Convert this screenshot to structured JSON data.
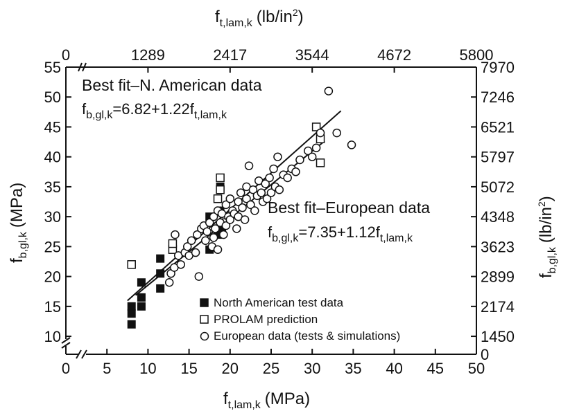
{
  "chart_data": {
    "type": "scatter",
    "bottom_axis": {
      "label": "f",
      "label_sub": "t,lam,k",
      "label_unit": "(MPa)",
      "range": [
        0,
        50
      ],
      "ticks": [
        "0",
        "5",
        "10",
        "15",
        "20",
        "25",
        "30",
        "35",
        "40",
        "45",
        "50"
      ]
    },
    "top_axis": {
      "label": "f",
      "label_sub": "t,lam,k",
      "label_unit": "(lb/in",
      "label_sup": "2",
      "label_close": ")",
      "ticks": [
        "0",
        "1289",
        "2417",
        "3544",
        "4672",
        "5800"
      ]
    },
    "left_axis": {
      "label": "f",
      "label_sub": "b,gl,k",
      "label_unit": "(MPa)",
      "range": [
        7,
        55
      ],
      "ticks": [
        "10",
        "15",
        "20",
        "25",
        "30",
        "35",
        "40",
        "45",
        "50",
        "55"
      ]
    },
    "right_axis": {
      "label": "f",
      "label_sub": "b,gl,k",
      "label_unit": "(lb/in",
      "label_sup": "2",
      "label_close": ")",
      "ticks": [
        "0",
        "1450",
        "2174",
        "2899",
        "3623",
        "4348",
        "5072",
        "5797",
        "6521",
        "7246",
        "7970"
      ]
    },
    "annotations": {
      "na_title": "Best fit–N. American data",
      "na_eq_lhs": "f",
      "na_eq_lhs_sub": "b,gl,k",
      "na_eq_mid": "=6.82+1.22f",
      "na_eq_rhs_sub": "t,lam,k",
      "eu_title": "Best fit–European data",
      "eu_eq_lhs": "f",
      "eu_eq_lhs_sub": "b,gl,k",
      "eu_eq_mid": "=7.35+1.12f",
      "eu_eq_rhs_sub": "t,lam,k"
    },
    "fit_lines": [
      {
        "intercept": 6.82,
        "slope": 1.22,
        "x_range": [
          7.5,
          33.5
        ]
      },
      {
        "intercept": 7.35,
        "slope": 1.12,
        "x_range": [
          8.5,
          31.5
        ]
      }
    ],
    "legend": {
      "position": "bottom-right",
      "entries": [
        "North American test data",
        "PROLAM prediction",
        "European data (tests & simulations)"
      ]
    },
    "series": [
      {
        "name": "North American test data",
        "marker": "filled-square",
        "points": [
          [
            8.0,
            12.0
          ],
          [
            8.0,
            13.8
          ],
          [
            8.0,
            15.0
          ],
          [
            9.2,
            15.0
          ],
          [
            9.2,
            16.5
          ],
          [
            9.2,
            19.0
          ],
          [
            11.5,
            18.0
          ],
          [
            11.5,
            20.5
          ],
          [
            11.5,
            23.0
          ],
          [
            17.5,
            24.5
          ],
          [
            17.5,
            30.0
          ],
          [
            18.5,
            27.0
          ],
          [
            18.8,
            31.0
          ],
          [
            18.8,
            35.0
          ],
          [
            19.0,
            28.0
          ]
        ]
      },
      {
        "name": "PROLAM prediction",
        "marker": "open-square",
        "points": [
          [
            8.0,
            22.0
          ],
          [
            13.0,
            24.5
          ],
          [
            13.0,
            25.5
          ],
          [
            18.5,
            33.0
          ],
          [
            18.8,
            34.5
          ],
          [
            18.8,
            36.5
          ],
          [
            19.5,
            29.0
          ],
          [
            30.5,
            45.0
          ],
          [
            31.0,
            43.0
          ],
          [
            31.0,
            39.0
          ]
        ]
      },
      {
        "name": "European data (tests & simulations)",
        "marker": "open-circle",
        "points": [
          [
            12.6,
            19.0
          ],
          [
            12.8,
            20.5
          ],
          [
            13.2,
            21.5
          ],
          [
            13.3,
            27.0
          ],
          [
            13.7,
            23.5
          ],
          [
            14.0,
            22.0
          ],
          [
            14.5,
            24.0
          ],
          [
            14.8,
            25.0
          ],
          [
            15.0,
            23.5
          ],
          [
            15.3,
            26.0
          ],
          [
            15.8,
            24.0
          ],
          [
            16.0,
            27.0
          ],
          [
            16.2,
            20.0
          ],
          [
            16.5,
            28.0
          ],
          [
            16.8,
            28.5
          ],
          [
            17.0,
            26.0
          ],
          [
            17.2,
            27.5
          ],
          [
            17.5,
            29.0
          ],
          [
            17.8,
            25.0
          ],
          [
            18.0,
            26.5
          ],
          [
            18.0,
            30.0
          ],
          [
            18.2,
            28.0
          ],
          [
            18.5,
            31.0
          ],
          [
            18.5,
            24.5
          ],
          [
            18.8,
            29.0
          ],
          [
            19.0,
            30.5
          ],
          [
            19.2,
            27.0
          ],
          [
            19.5,
            32.0
          ],
          [
            19.5,
            28.5
          ],
          [
            19.8,
            30.0
          ],
          [
            20.0,
            29.5
          ],
          [
            20.0,
            33.0
          ],
          [
            20.3,
            31.0
          ],
          [
            20.5,
            30.5
          ],
          [
            20.8,
            28.0
          ],
          [
            21.0,
            32.5
          ],
          [
            21.0,
            30.0
          ],
          [
            21.3,
            34.0
          ],
          [
            21.5,
            31.5
          ],
          [
            21.8,
            29.5
          ],
          [
            22.0,
            33.0
          ],
          [
            22.0,
            35.0
          ],
          [
            22.3,
            38.5
          ],
          [
            22.5,
            32.0
          ],
          [
            22.8,
            34.5
          ],
          [
            23.0,
            31.0
          ],
          [
            23.3,
            33.5
          ],
          [
            23.5,
            36.0
          ],
          [
            23.8,
            34.0
          ],
          [
            24.0,
            32.5
          ],
          [
            24.3,
            35.5
          ],
          [
            24.5,
            33.0
          ],
          [
            24.8,
            36.5
          ],
          [
            25.0,
            34.0
          ],
          [
            25.3,
            38.0
          ],
          [
            25.5,
            35.0
          ],
          [
            25.8,
            40.0
          ],
          [
            26.0,
            34.5
          ],
          [
            26.5,
            37.0
          ],
          [
            27.0,
            36.5
          ],
          [
            27.5,
            38.0
          ],
          [
            28.0,
            37.5
          ],
          [
            28.5,
            39.5
          ],
          [
            29.5,
            41.0
          ],
          [
            30.0,
            40.0
          ],
          [
            30.5,
            41.5
          ],
          [
            31.0,
            44.0
          ],
          [
            32.0,
            51.0
          ],
          [
            33.0,
            44.0
          ],
          [
            34.8,
            42.0
          ]
        ]
      }
    ]
  }
}
